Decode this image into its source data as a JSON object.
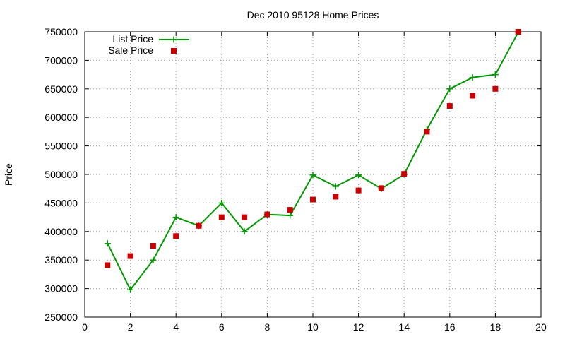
{
  "chart_data": {
    "type": "line",
    "title": "Dec 2010 95128 Home Prices",
    "xlabel": "",
    "ylabel": "Price",
    "xlim": [
      0,
      20
    ],
    "ylim": [
      250000,
      750000
    ],
    "xticks": [
      0,
      2,
      4,
      6,
      8,
      10,
      12,
      14,
      16,
      18,
      20
    ],
    "yticks": [
      250000,
      300000,
      350000,
      400000,
      450000,
      500000,
      550000,
      600000,
      650000,
      700000,
      750000
    ],
    "grid": true,
    "legend_position": "top-left",
    "series": [
      {
        "name": "List Price",
        "style": "line-with-plus-markers",
        "color": "#009900",
        "x": [
          1,
          2,
          3,
          4,
          5,
          6,
          7,
          8,
          9,
          10,
          11,
          12,
          13,
          14,
          15,
          16,
          17,
          18,
          19
        ],
        "y": [
          379000,
          298000,
          350000,
          425000,
          410000,
          450000,
          400000,
          430000,
          428000,
          499000,
          479000,
          499000,
          475000,
          500000,
          579000,
          650000,
          670000,
          675000,
          749000
        ]
      },
      {
        "name": "Sale Price",
        "style": "square-markers",
        "color": "#cc0000",
        "x": [
          1,
          2,
          3,
          4,
          5,
          6,
          7,
          8,
          9,
          10,
          11,
          12,
          13,
          14,
          15,
          16,
          17,
          18,
          19
        ],
        "y": [
          341000,
          357000,
          375000,
          392000,
          410000,
          425000,
          425000,
          430000,
          438000,
          456000,
          461000,
          472000,
          476000,
          501000,
          575000,
          620000,
          638000,
          650000,
          750000
        ]
      }
    ]
  }
}
